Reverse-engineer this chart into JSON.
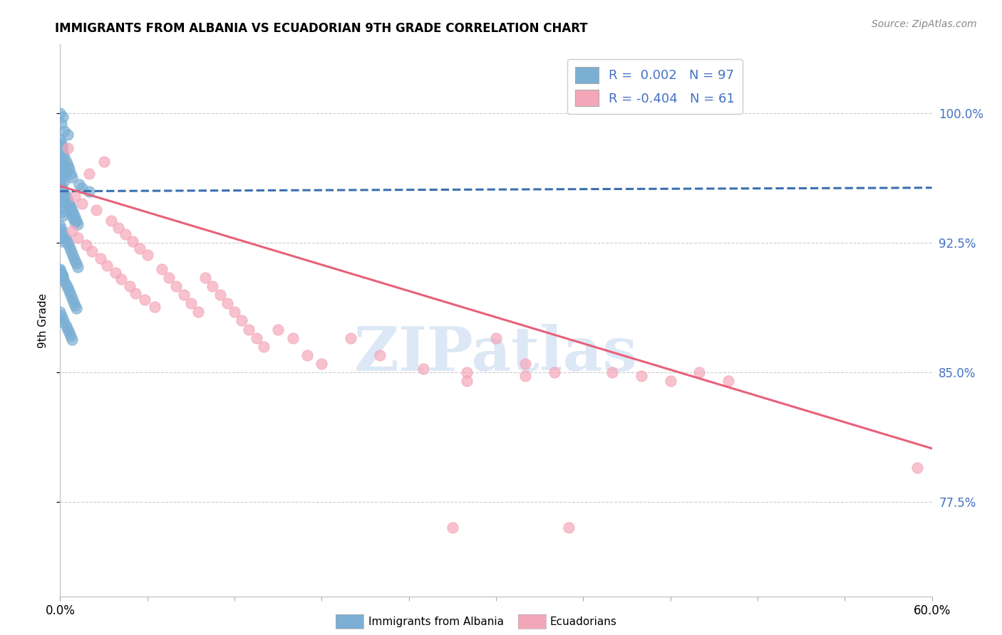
{
  "title": "IMMIGRANTS FROM ALBANIA VS ECUADORIAN 9TH GRADE CORRELATION CHART",
  "source_text": "Source: ZipAtlas.com",
  "ylabel": "9th Grade",
  "ytick_labels": [
    "100.0%",
    "92.5%",
    "85.0%",
    "77.5%"
  ],
  "ytick_values": [
    1.0,
    0.925,
    0.85,
    0.775
  ],
  "xlim": [
    0.0,
    0.6
  ],
  "ylim": [
    0.72,
    1.04
  ],
  "blue_color": "#7bafd4",
  "pink_color": "#f4a7b9",
  "blue_line_color": "#3a6faf",
  "pink_line_color": "#e8607a",
  "watermark_text": "ZIPatlas",
  "watermark_color": "#dce8f5",
  "right_axis_color": "#4472c4",
  "grid_color": "#cccccc",
  "blue_scatter": [
    [
      0.0,
      1.0
    ],
    [
      0.002,
      0.998
    ],
    [
      0.001,
      0.994
    ],
    [
      0.003,
      0.99
    ],
    [
      0.005,
      0.988
    ],
    [
      0.001,
      0.98
    ],
    [
      0.002,
      0.977
    ],
    [
      0.003,
      0.975
    ],
    [
      0.004,
      0.972
    ],
    [
      0.005,
      0.97
    ],
    [
      0.006,
      0.968
    ],
    [
      0.007,
      0.965
    ],
    [
      0.008,
      0.963
    ],
    [
      0.0,
      0.96
    ],
    [
      0.001,
      0.958
    ],
    [
      0.002,
      0.956
    ],
    [
      0.003,
      0.954
    ],
    [
      0.004,
      0.952
    ],
    [
      0.005,
      0.95
    ],
    [
      0.006,
      0.948
    ],
    [
      0.007,
      0.946
    ],
    [
      0.008,
      0.944
    ],
    [
      0.009,
      0.942
    ],
    [
      0.01,
      0.94
    ],
    [
      0.011,
      0.938
    ],
    [
      0.012,
      0.936
    ],
    [
      0.0,
      0.957
    ],
    [
      0.001,
      0.955
    ],
    [
      0.002,
      0.953
    ],
    [
      0.003,
      0.951
    ],
    [
      0.004,
      0.949
    ],
    [
      0.005,
      0.947
    ],
    [
      0.006,
      0.945
    ],
    [
      0.007,
      0.943
    ],
    [
      0.008,
      0.941
    ],
    [
      0.009,
      0.939
    ],
    [
      0.01,
      0.937
    ],
    [
      0.0,
      0.935
    ],
    [
      0.001,
      0.933
    ],
    [
      0.002,
      0.931
    ],
    [
      0.003,
      0.929
    ],
    [
      0.004,
      0.927
    ],
    [
      0.005,
      0.925
    ],
    [
      0.006,
      0.923
    ],
    [
      0.007,
      0.921
    ],
    [
      0.008,
      0.919
    ],
    [
      0.009,
      0.917
    ],
    [
      0.01,
      0.915
    ],
    [
      0.011,
      0.913
    ],
    [
      0.012,
      0.911
    ],
    [
      0.0,
      0.909
    ],
    [
      0.001,
      0.907
    ],
    [
      0.002,
      0.905
    ],
    [
      0.003,
      0.903
    ],
    [
      0.004,
      0.901
    ],
    [
      0.005,
      0.899
    ],
    [
      0.006,
      0.897
    ],
    [
      0.007,
      0.895
    ],
    [
      0.008,
      0.893
    ],
    [
      0.009,
      0.891
    ],
    [
      0.01,
      0.889
    ],
    [
      0.011,
      0.887
    ],
    [
      0.0,
      0.885
    ],
    [
      0.001,
      0.883
    ],
    [
      0.002,
      0.881
    ],
    [
      0.003,
      0.879
    ],
    [
      0.004,
      0.877
    ],
    [
      0.005,
      0.875
    ],
    [
      0.006,
      0.873
    ],
    [
      0.007,
      0.871
    ],
    [
      0.008,
      0.869
    ],
    [
      0.0,
      0.967
    ],
    [
      0.001,
      0.965
    ],
    [
      0.002,
      0.963
    ],
    [
      0.003,
      0.961
    ],
    [
      0.015,
      0.957
    ],
    [
      0.02,
      0.955
    ],
    [
      0.0,
      0.953
    ],
    [
      0.001,
      0.951
    ],
    [
      0.002,
      0.949
    ],
    [
      0.0,
      0.93
    ],
    [
      0.001,
      0.928
    ],
    [
      0.002,
      0.926
    ],
    [
      0.0,
      0.91
    ],
    [
      0.001,
      0.908
    ],
    [
      0.002,
      0.906
    ],
    [
      0.0,
      0.945
    ],
    [
      0.001,
      0.943
    ],
    [
      0.002,
      0.941
    ],
    [
      0.0,
      0.975
    ],
    [
      0.001,
      0.973
    ],
    [
      0.002,
      0.971
    ],
    [
      0.0,
      0.985
    ],
    [
      0.001,
      0.983
    ],
    [
      0.002,
      0.981
    ],
    [
      0.003,
      0.969
    ],
    [
      0.004,
      0.966
    ],
    [
      0.013,
      0.959
    ]
  ],
  "pink_scatter": [
    [
      0.005,
      0.98
    ],
    [
      0.03,
      0.972
    ],
    [
      0.02,
      0.965
    ],
    [
      0.01,
      0.952
    ],
    [
      0.015,
      0.948
    ],
    [
      0.025,
      0.944
    ],
    [
      0.035,
      0.938
    ],
    [
      0.04,
      0.934
    ],
    [
      0.045,
      0.93
    ],
    [
      0.05,
      0.926
    ],
    [
      0.055,
      0.922
    ],
    [
      0.06,
      0.918
    ],
    [
      0.008,
      0.932
    ],
    [
      0.012,
      0.928
    ],
    [
      0.018,
      0.924
    ],
    [
      0.022,
      0.92
    ],
    [
      0.028,
      0.916
    ],
    [
      0.032,
      0.912
    ],
    [
      0.038,
      0.908
    ],
    [
      0.042,
      0.904
    ],
    [
      0.048,
      0.9
    ],
    [
      0.052,
      0.896
    ],
    [
      0.058,
      0.892
    ],
    [
      0.065,
      0.888
    ],
    [
      0.07,
      0.91
    ],
    [
      0.075,
      0.905
    ],
    [
      0.08,
      0.9
    ],
    [
      0.085,
      0.895
    ],
    [
      0.09,
      0.89
    ],
    [
      0.095,
      0.885
    ],
    [
      0.1,
      0.905
    ],
    [
      0.105,
      0.9
    ],
    [
      0.11,
      0.895
    ],
    [
      0.115,
      0.89
    ],
    [
      0.12,
      0.885
    ],
    [
      0.125,
      0.88
    ],
    [
      0.13,
      0.875
    ],
    [
      0.135,
      0.87
    ],
    [
      0.14,
      0.865
    ],
    [
      0.15,
      0.875
    ],
    [
      0.16,
      0.87
    ],
    [
      0.17,
      0.86
    ],
    [
      0.18,
      0.855
    ],
    [
      0.2,
      0.87
    ],
    [
      0.22,
      0.86
    ],
    [
      0.25,
      0.852
    ],
    [
      0.28,
      0.845
    ],
    [
      0.3,
      0.87
    ],
    [
      0.32,
      0.855
    ],
    [
      0.34,
      0.85
    ],
    [
      0.38,
      0.85
    ],
    [
      0.4,
      0.848
    ],
    [
      0.42,
      0.845
    ],
    [
      0.44,
      0.85
    ],
    [
      0.46,
      0.845
    ],
    [
      0.28,
      0.85
    ],
    [
      0.32,
      0.848
    ],
    [
      0.35,
      0.76
    ],
    [
      0.27,
      0.76
    ],
    [
      0.59,
      0.795
    ]
  ],
  "blue_trend_x": [
    0.0,
    0.6
  ],
  "blue_trend_y": [
    0.955,
    0.957
  ],
  "pink_trend_x": [
    0.0,
    0.6
  ],
  "pink_trend_y": [
    0.958,
    0.806
  ]
}
